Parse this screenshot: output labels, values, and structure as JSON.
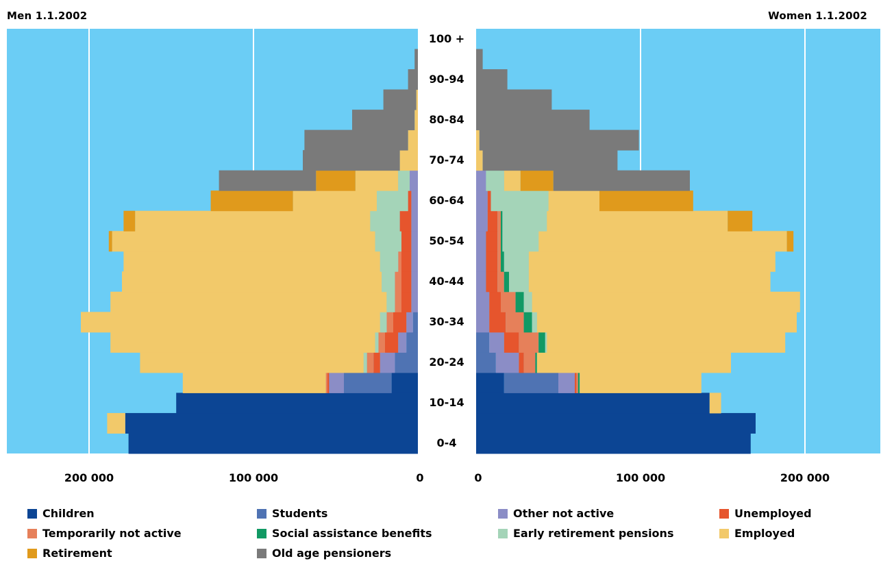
{
  "chart_data": {
    "type": "bar",
    "subtype": "population-pyramid",
    "title_left": "Men 1.1.2002",
    "title_right": "Women 1.1.2002",
    "categories": [
      "0-4",
      "5-9",
      "10-14",
      "15-19",
      "20-24",
      "25-29",
      "30-34",
      "35-39",
      "40-44",
      "45-49",
      "50-54",
      "55-59",
      "60-64",
      "65-69",
      "70-74",
      "75-79",
      "80-84",
      "85-89",
      "90-94",
      "95-99",
      "100 +"
    ],
    "category_tick_labels": [
      "0-4",
      "10-14",
      "20-24",
      "30-34",
      "40-44",
      "50-54",
      "60-64",
      "70-74",
      "80-84",
      "90-94",
      "100 +"
    ],
    "x_tick_labels_left": [
      "200 000",
      "100 000",
      "0"
    ],
    "x_tick_labels_right": [
      "0",
      "100 000",
      "200 000"
    ],
    "xlim": [
      0,
      250000
    ],
    "grid_values": [
      100000,
      200000
    ],
    "background_color": "#6bcdf5",
    "grid_color": "#ffffff",
    "legend_position": "bottom",
    "series": [
      {
        "name": "Children",
        "color": "#0c4594",
        "men": [
          176000,
          178000,
          147000,
          16000,
          0,
          0,
          0,
          0,
          0,
          0,
          0,
          0,
          0,
          0,
          0,
          0,
          0,
          0,
          0,
          0,
          0
        ],
        "women": [
          167000,
          170000,
          142000,
          17000,
          0,
          0,
          0,
          0,
          0,
          0,
          0,
          0,
          0,
          0,
          0,
          0,
          0,
          0,
          0,
          0,
          0
        ]
      },
      {
        "name": "Students",
        "color": "#4f73b3",
        "men": [
          0,
          0,
          0,
          29000,
          14000,
          7000,
          3000,
          0,
          0,
          0,
          0,
          0,
          0,
          0,
          0,
          0,
          0,
          0,
          0,
          0,
          0
        ],
        "women": [
          0,
          0,
          0,
          33000,
          12000,
          8000,
          0,
          0,
          0,
          0,
          0,
          0,
          0,
          0,
          0,
          0,
          0,
          0,
          0,
          0,
          0
        ]
      },
      {
        "name": "Other not active",
        "color": "#8b8dc6",
        "men": [
          0,
          0,
          0,
          9000,
          9000,
          5000,
          4000,
          4000,
          4000,
          4000,
          4000,
          4000,
          4000,
          5000,
          0,
          0,
          0,
          0,
          0,
          0,
          0
        ],
        "women": [
          0,
          0,
          0,
          10000,
          14000,
          9000,
          8000,
          8000,
          6000,
          6000,
          6000,
          7000,
          7000,
          6000,
          0,
          0,
          0,
          0,
          0,
          0,
          0
        ]
      },
      {
        "name": "Unemployed",
        "color": "#e6552d",
        "men": [
          0,
          0,
          0,
          1000,
          4000,
          8000,
          8000,
          6000,
          6000,
          6000,
          6000,
          7000,
          2000,
          0,
          0,
          0,
          0,
          0,
          0,
          0,
          0
        ],
        "women": [
          0,
          0,
          0,
          1000,
          3000,
          9000,
          10000,
          7000,
          7000,
          7000,
          7000,
          6000,
          2000,
          0,
          0,
          0,
          0,
          0,
          0,
          0,
          0
        ]
      },
      {
        "name": "Temporarily not active",
        "color": "#e6805a",
        "men": [
          0,
          0,
          0,
          1000,
          4000,
          4000,
          4000,
          4000,
          4000,
          2000,
          0,
          0,
          0,
          0,
          0,
          0,
          0,
          0,
          0,
          0,
          0
        ],
        "women": [
          0,
          0,
          0,
          1000,
          7000,
          12000,
          11000,
          9000,
          4000,
          2000,
          2000,
          2000,
          0,
          0,
          0,
          0,
          0,
          0,
          0,
          0,
          0
        ]
      },
      {
        "name": "Social assistance benefits",
        "color": "#119964",
        "men": [
          0,
          0,
          0,
          0,
          0,
          0,
          0,
          0,
          0,
          0,
          0,
          0,
          0,
          0,
          0,
          0,
          0,
          0,
          0,
          0,
          0
        ],
        "women": [
          0,
          0,
          0,
          1000,
          1000,
          4000,
          5000,
          5000,
          3000,
          2000,
          1000,
          1000,
          0,
          0,
          0,
          0,
          0,
          0,
          0,
          0,
          0
        ]
      },
      {
        "name": "Early retirement pensions",
        "color": "#a4d4b8",
        "men": [
          0,
          0,
          0,
          0,
          2000,
          2000,
          4000,
          5000,
          8000,
          11000,
          16000,
          18000,
          19000,
          7000,
          0,
          0,
          0,
          0,
          0,
          0,
          0
        ],
        "women": [
          0,
          0,
          0,
          0,
          0,
          1000,
          3000,
          5000,
          12000,
          15000,
          22000,
          27000,
          35000,
          11000,
          0,
          0,
          0,
          0,
          0,
          0,
          0
        ]
      },
      {
        "name": "Employed",
        "color": "#f2c96a",
        "men": [
          0,
          11000,
          0,
          87000,
          136000,
          161000,
          182000,
          168000,
          158000,
          156000,
          160000,
          143000,
          51000,
          26000,
          11000,
          6000,
          2000,
          1000,
          0,
          0,
          0
        ],
        "women": [
          0,
          0,
          7000,
          74000,
          118000,
          145000,
          158000,
          163000,
          147000,
          150000,
          151000,
          110000,
          31000,
          10000,
          4000,
          2000,
          0,
          0,
          0,
          0,
          0
        ]
      },
      {
        "name": "Retirement",
        "color": "#e09a1c",
        "men": [
          0,
          0,
          0,
          0,
          0,
          0,
          0,
          0,
          0,
          0,
          2000,
          7000,
          50000,
          24000,
          0,
          0,
          0,
          0,
          0,
          0,
          0
        ],
        "women": [
          0,
          0,
          0,
          0,
          0,
          0,
          0,
          0,
          0,
          0,
          4000,
          15000,
          57000,
          20000,
          0,
          0,
          0,
          0,
          0,
          0,
          0
        ]
      },
      {
        "name": "Old age pensioners",
        "color": "#7a7a7a",
        "men": [
          0,
          0,
          0,
          0,
          0,
          0,
          0,
          0,
          0,
          0,
          0,
          0,
          0,
          59000,
          59000,
          63000,
          38000,
          20000,
          6000,
          2000,
          0
        ],
        "women": [
          0,
          0,
          0,
          0,
          0,
          0,
          0,
          0,
          0,
          0,
          0,
          0,
          0,
          83000,
          82000,
          97000,
          69000,
          46000,
          19000,
          4000,
          0
        ]
      }
    ]
  }
}
